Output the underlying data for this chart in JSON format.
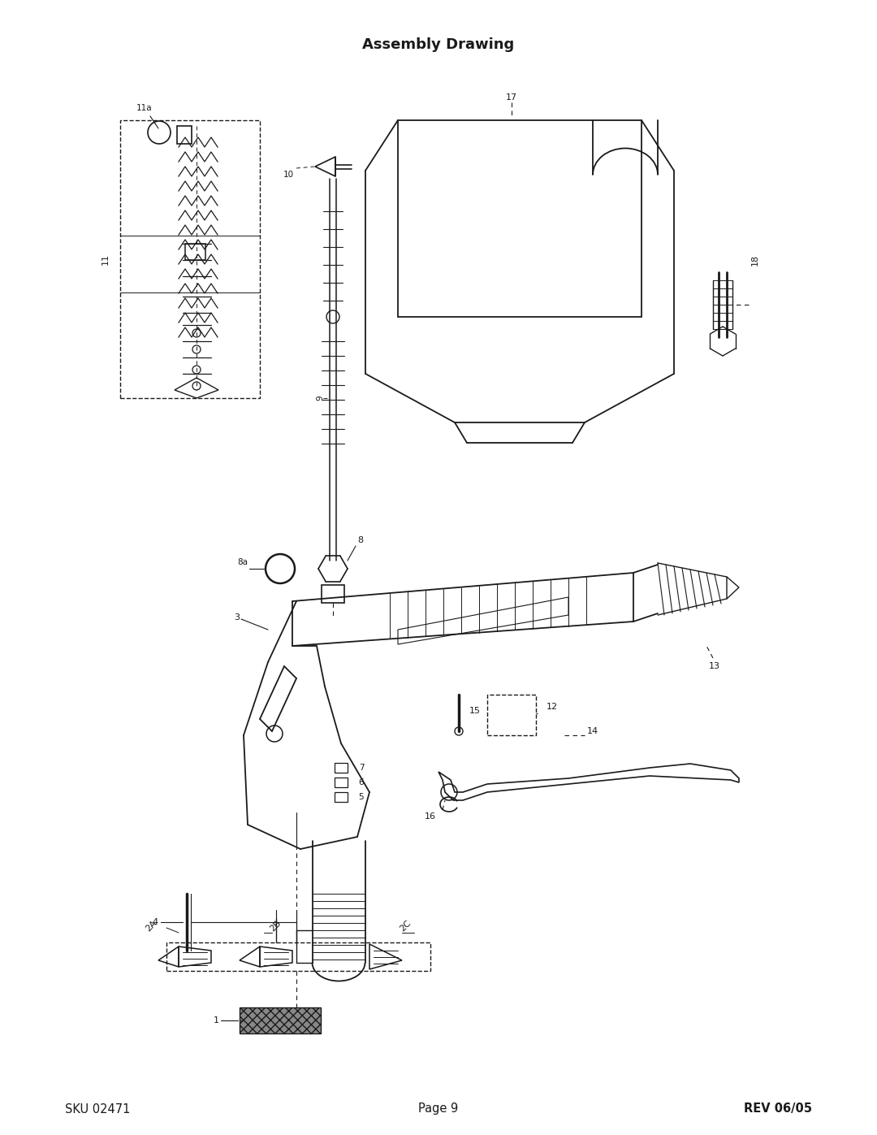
{
  "title": "Assembly Drawing",
  "footer_left": "SKU 02471",
  "footer_center": "Page 9",
  "footer_right": "REV 06/05",
  "bg_color": "#ffffff",
  "text_color": "#1a1a1a",
  "line_color": "#1a1a1a",
  "title_fontsize": 13,
  "footer_fontsize": 10.5,
  "label_fontsize": 7.5
}
